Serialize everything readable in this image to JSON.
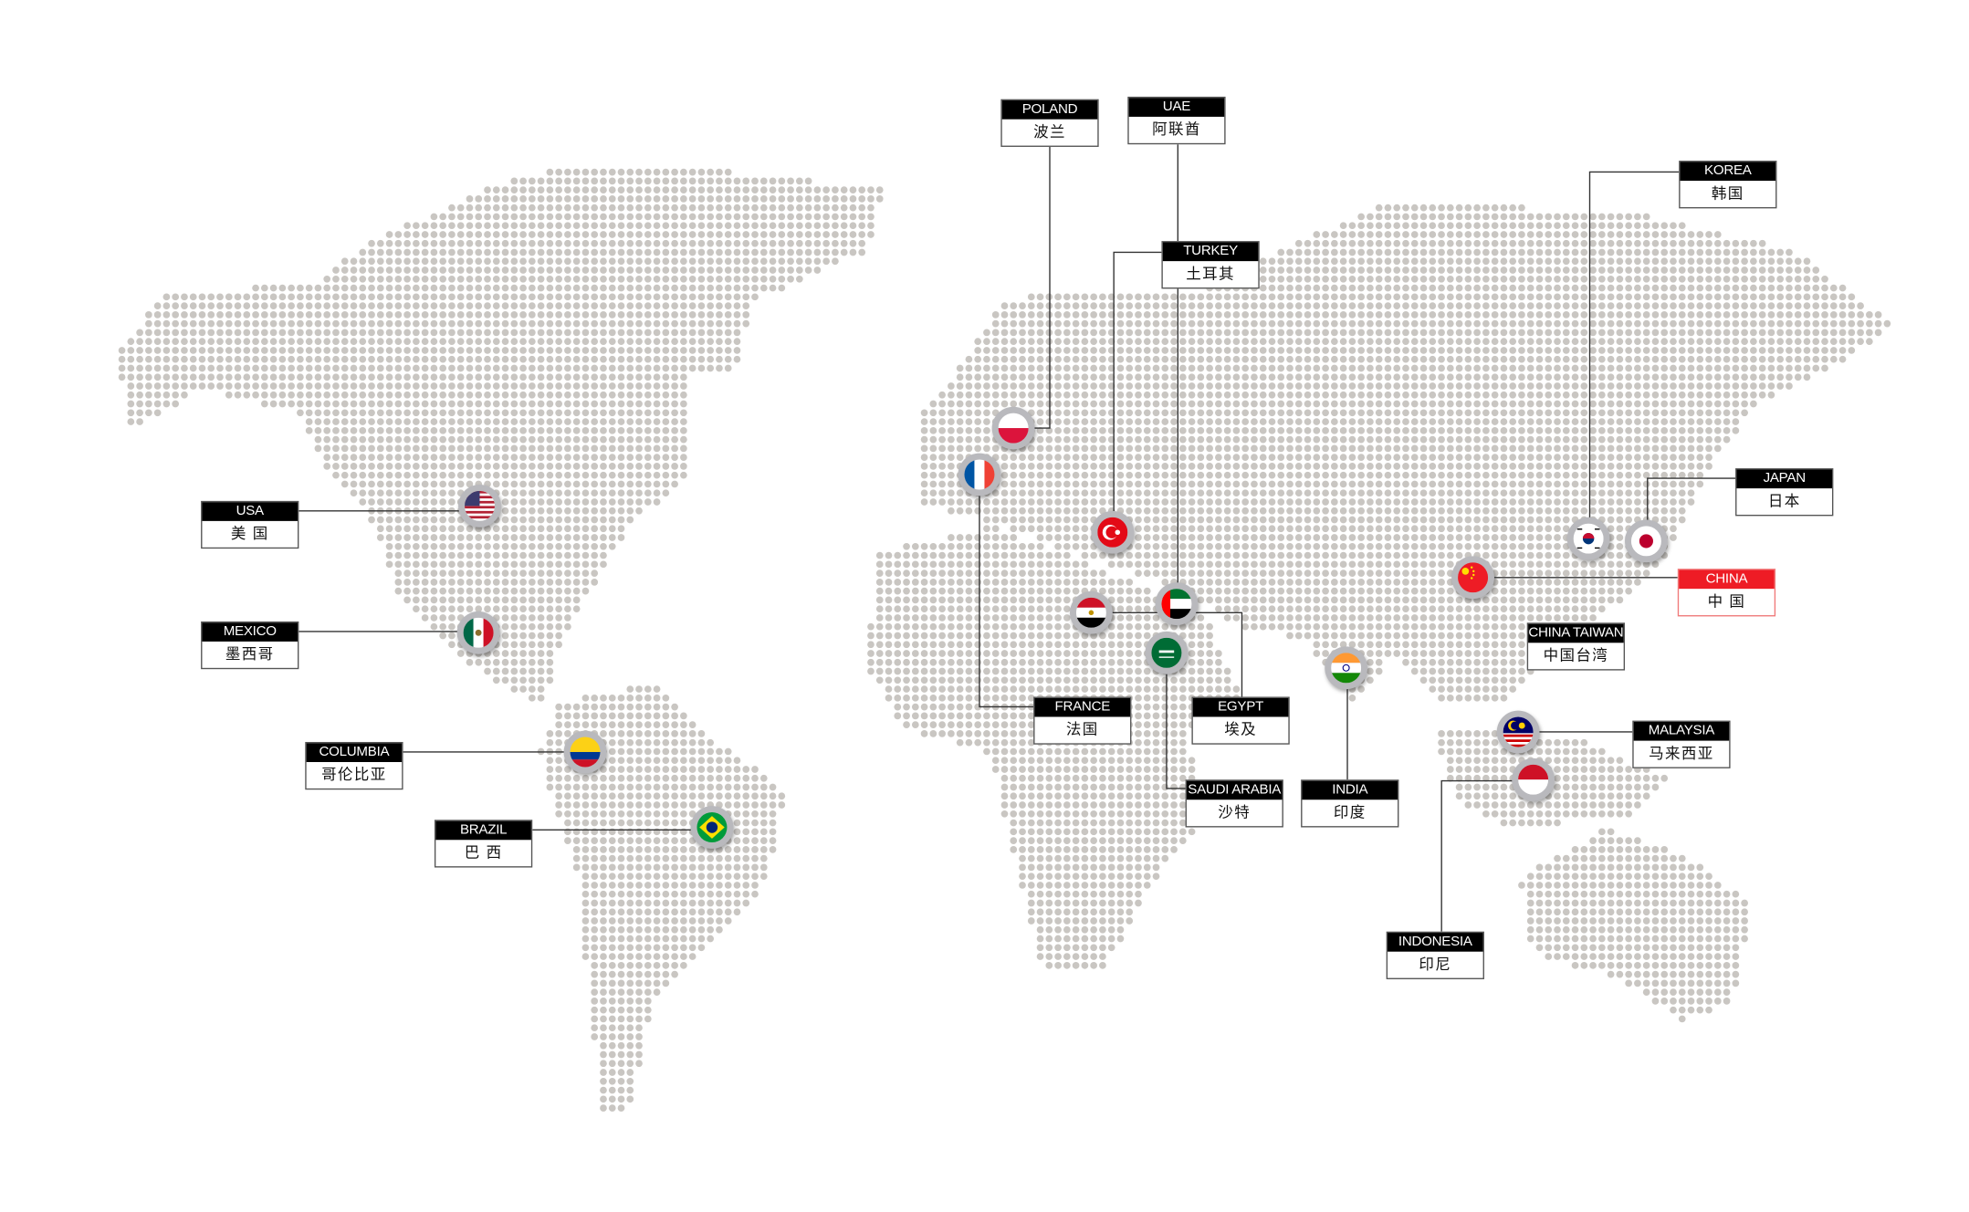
{
  "map": {
    "dot_color": "#c9c6c2",
    "line_color": "#333333",
    "highlight_color": "#ee1c25"
  },
  "locations": [
    {
      "id": "poland",
      "en": "POLAND",
      "cn": "波兰",
      "flag": "poland-flag"
    },
    {
      "id": "uae",
      "en": "UAE",
      "cn": "阿联酋",
      "flag": "uae-flag"
    },
    {
      "id": "turkey",
      "en": "TURKEY",
      "cn": "土耳其",
      "flag": "turkey-flag"
    },
    {
      "id": "korea",
      "en": "KOREA",
      "cn": "韩国",
      "flag": "korea-flag"
    },
    {
      "id": "japan",
      "en": "JAPAN",
      "cn": "日本",
      "flag": "japan-flag"
    },
    {
      "id": "china",
      "en": "CHINA",
      "cn": "中 国",
      "flag": "china-flag",
      "highlight": true
    },
    {
      "id": "china-taiwan",
      "en": "CHINA TAIWAN",
      "cn": "中国台湾"
    },
    {
      "id": "malaysia",
      "en": "MALAYSIA",
      "cn": "马来西亚",
      "flag": "malaysia-flag"
    },
    {
      "id": "indonesia",
      "en": "INDONESIA",
      "cn": "印尼",
      "flag": "indonesia-flag"
    },
    {
      "id": "india",
      "en": "INDIA",
      "cn": "印度",
      "flag": "india-flag"
    },
    {
      "id": "saudi-arabia",
      "en": "SAUDI ARABIA",
      "cn": "沙特",
      "flag": "saudi-arabia-flag"
    },
    {
      "id": "egypt",
      "en": "EGYPT",
      "cn": "埃及",
      "flag": "egypt-flag"
    },
    {
      "id": "france",
      "en": "FRANCE",
      "cn": "法国",
      "flag": "france-flag"
    },
    {
      "id": "usa",
      "en": "USA",
      "cn": "美 国",
      "flag": "usa-flag"
    },
    {
      "id": "mexico",
      "en": "MEXICO",
      "cn": "墨西哥",
      "flag": "mexico-flag"
    },
    {
      "id": "columbia",
      "en": "COLUMBIA",
      "cn": "哥伦比亚",
      "flag": "colombia-flag"
    },
    {
      "id": "brazil",
      "en": "BRAZIL",
      "cn": "巴 西",
      "flag": "brazil-flag"
    }
  ]
}
